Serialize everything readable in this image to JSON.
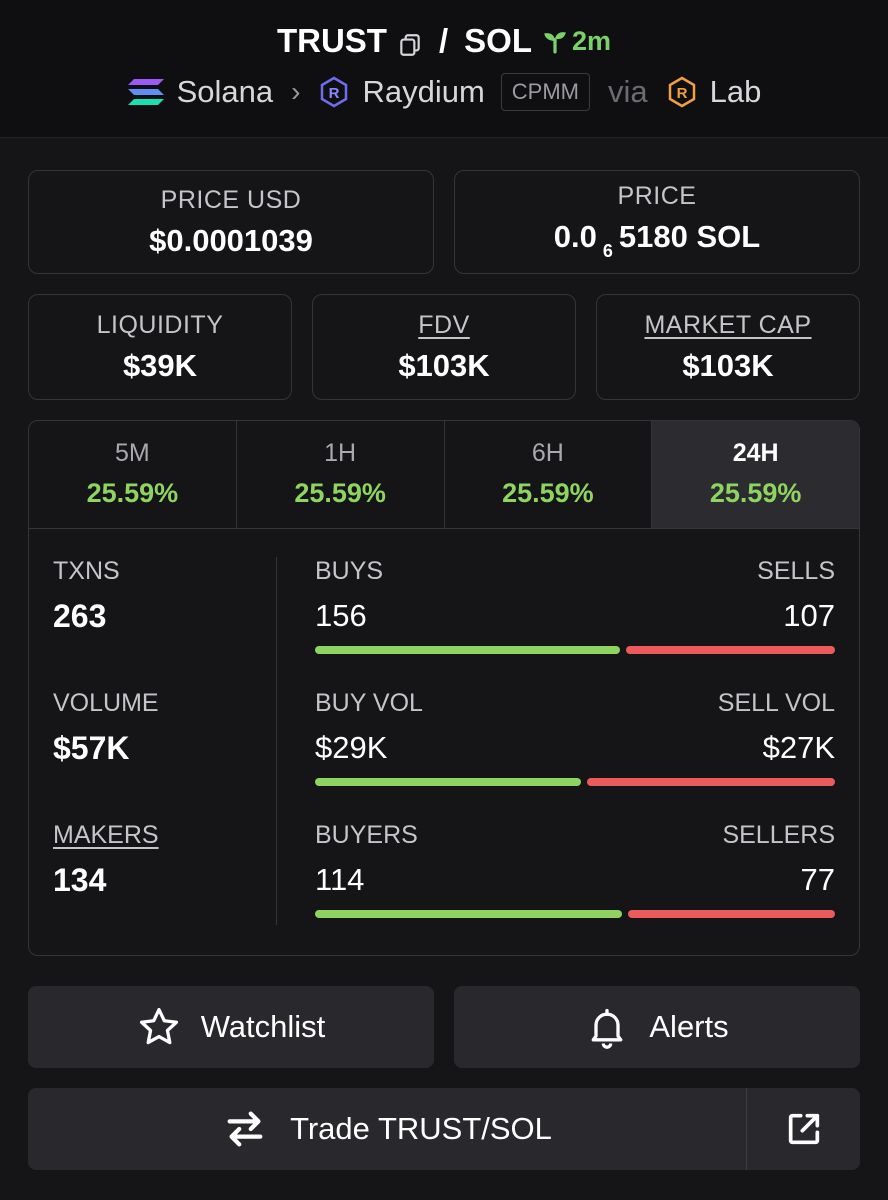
{
  "header": {
    "base": "TRUST",
    "separator": "/",
    "quote": "SOL",
    "age": "2m",
    "chain": "Solana",
    "dex": "Raydium",
    "pool_type": "CPMM",
    "via_label": "via",
    "launchpad": "Lab"
  },
  "price_usd": {
    "label": "PRICE USD",
    "value": "$0.0001039"
  },
  "price_native": {
    "label": "PRICE",
    "prefix": "0.0",
    "zeros": "6",
    "digits": "5180",
    "unit": "SOL"
  },
  "liquidity": {
    "label": "LIQUIDITY",
    "value": "$39K"
  },
  "fdv": {
    "label": "FDV",
    "value": "$103K"
  },
  "market_cap": {
    "label": "MARKET CAP",
    "value": "$103K"
  },
  "timeframes": [
    {
      "label": "5M",
      "change": "25.59%"
    },
    {
      "label": "1H",
      "change": "25.59%"
    },
    {
      "label": "6H",
      "change": "25.59%"
    },
    {
      "label": "24H",
      "change": "25.59%",
      "active": true
    }
  ],
  "stats": {
    "txns": {
      "label": "TXNS",
      "value": "263"
    },
    "volume": {
      "label": "VOLUME",
      "value": "$57K"
    },
    "makers": {
      "label": "MAKERS",
      "value": "134"
    },
    "buys_sells": {
      "buy_label": "BUYS",
      "sell_label": "SELLS",
      "buy_value": "156",
      "sell_value": "107",
      "buy_share": 0.593
    },
    "buy_sell_vol": {
      "buy_label": "BUY VOL",
      "sell_label": "SELL VOL",
      "buy_value": "$29K",
      "sell_value": "$27K",
      "buy_share": 0.518
    },
    "buyers_sellers": {
      "buy_label": "BUYERS",
      "sell_label": "SELLERS",
      "buy_value": "114",
      "sell_value": "77",
      "buy_share": 0.597
    }
  },
  "buttons": {
    "watchlist": "Watchlist",
    "alerts": "Alerts",
    "trade": "Trade TRUST/SOL"
  },
  "colors": {
    "positive": "#8fd460",
    "negative": "#ec5b5b",
    "age_green": "#7bd06a"
  }
}
